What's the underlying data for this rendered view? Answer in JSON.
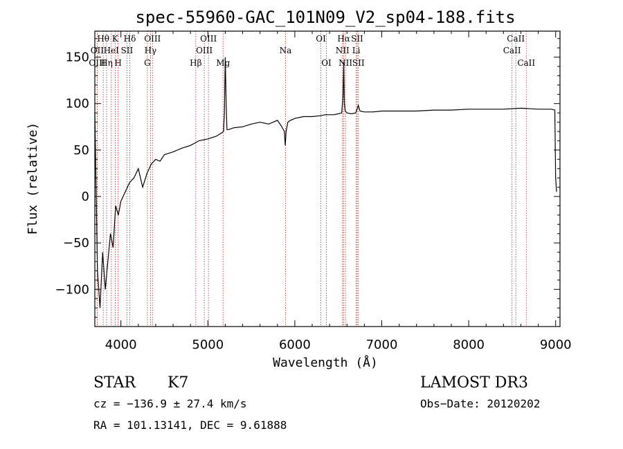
{
  "chart_data": {
    "type": "line",
    "title": "spec-55960-GAC_101N09_V2_sp04-188.fits",
    "xlabel": "Wavelength (Å)",
    "ylabel": "Flux (relative)",
    "xlim": [
      3700,
      9050
    ],
    "ylim": [
      -140,
      178
    ],
    "x_ticks": [
      4000,
      5000,
      6000,
      7000,
      8000,
      9000
    ],
    "y_ticks": [
      -100,
      -50,
      0,
      50,
      100,
      150
    ],
    "x_tick_labels": [
      "4000",
      "5000",
      "6000",
      "7000",
      "8000",
      "9000"
    ],
    "y_tick_labels": [
      "−100",
      "−50",
      "0",
      "50",
      "100",
      "150"
    ],
    "series": [
      {
        "name": "spectrum",
        "x": [
          3700,
          3730,
          3760,
          3790,
          3820,
          3850,
          3880,
          3910,
          3940,
          3970,
          4000,
          4050,
          4100,
          4150,
          4200,
          4250,
          4300,
          4350,
          4400,
          4450,
          4500,
          4600,
          4700,
          4800,
          4861,
          4900,
          5000,
          5100,
          5150,
          5180,
          5190,
          5200,
          5210,
          5220,
          5240,
          5300,
          5400,
          5500,
          5600,
          5700,
          5800,
          5850,
          5880,
          5890,
          5900,
          5920,
          5950,
          6000,
          6100,
          6200,
          6300,
          6350,
          6400,
          6450,
          6500,
          6540,
          6555,
          6563,
          6570,
          6580,
          6600,
          6650,
          6700,
          6720,
          6730,
          6750,
          6800,
          6900,
          7000,
          7200,
          7400,
          7600,
          7800,
          8000,
          8200,
          8400,
          8600,
          8800,
          8950,
          8990,
          9000,
          9010
        ],
        "y": [
          90,
          -80,
          -120,
          -60,
          -100,
          -70,
          -40,
          -55,
          -10,
          -20,
          -5,
          5,
          15,
          20,
          30,
          10,
          25,
          35,
          40,
          38,
          45,
          48,
          52,
          55,
          58,
          60,
          62,
          65,
          68,
          70,
          90,
          150,
          100,
          72,
          72,
          74,
          75,
          78,
          80,
          78,
          82,
          75,
          70,
          55,
          70,
          80,
          82,
          84,
          86,
          86,
          87,
          88,
          88,
          88,
          89,
          90,
          110,
          145,
          100,
          92,
          90,
          89,
          90,
          95,
          98,
          92,
          91,
          91,
          92,
          92,
          92,
          93,
          93,
          94,
          94,
          94,
          95,
          94,
          94,
          93,
          20,
          5
        ]
      }
    ],
    "spectral_lines": [
      {
        "label": "Hθ",
        "wavelength": 3797,
        "row": 1
      },
      {
        "label": "K",
        "wavelength": 3934,
        "row": 1
      },
      {
        "label": "Hδ",
        "wavelength": 4102,
        "row": 1
      },
      {
        "label": "OIII",
        "wavelength": 4363,
        "row": 1
      },
      {
        "label": "OIII",
        "wavelength": 5007,
        "row": 1
      },
      {
        "label": "OI",
        "wavelength": 6300,
        "row": 1
      },
      {
        "label": "Hα",
        "wavelength": 6563,
        "row": 1
      },
      {
        "label": "SII",
        "wavelength": 6717,
        "row": 1
      },
      {
        "label": "CaII",
        "wavelength": 8542,
        "row": 1
      },
      {
        "label": "OII",
        "wavelength": 3727,
        "row": 2
      },
      {
        "label": "HeI",
        "wavelength": 3889,
        "row": 2
      },
      {
        "label": "SII",
        "wavelength": 4069,
        "row": 2
      },
      {
        "label": "Hγ",
        "wavelength": 4340,
        "row": 2
      },
      {
        "label": "OIII",
        "wavelength": 4959,
        "row": 2
      },
      {
        "label": "Na",
        "wavelength": 5893,
        "row": 2
      },
      {
        "label": "NII",
        "wavelength": 6548,
        "row": 2
      },
      {
        "label": "Li",
        "wavelength": 6707,
        "row": 2
      },
      {
        "label": "CaII",
        "wavelength": 8498,
        "row": 2
      },
      {
        "label": "OIII",
        "wavelength": 3727,
        "row": 3
      },
      {
        "label": "Hη",
        "wavelength": 3835,
        "row": 3
      },
      {
        "label": "H",
        "wavelength": 3968,
        "row": 3
      },
      {
        "label": "G",
        "wavelength": 4304,
        "row": 3
      },
      {
        "label": "Hβ",
        "wavelength": 4861,
        "row": 3
      },
      {
        "label": "Mg",
        "wavelength": 5175,
        "row": 3
      },
      {
        "label": "OI",
        "wavelength": 6363,
        "row": 3
      },
      {
        "label": "NII",
        "wavelength": 6583,
        "row": 3
      },
      {
        "label": "SII",
        "wavelength": 6731,
        "row": 3
      },
      {
        "label": "CaII",
        "wavelength": 8662,
        "row": 3
      }
    ]
  },
  "info": {
    "class_label": "STAR",
    "subclass": "K7",
    "survey": "LAMOST DR3",
    "cz": "cz = −136.9 ± 27.4 km/s",
    "obs_date": "Obs−Date: 20120202",
    "coords": "RA = 101.13141, DEC =   9.61888"
  },
  "colors": {
    "spectrum": "#000000",
    "line_marker": "#b22222",
    "axes": "#000000"
  }
}
